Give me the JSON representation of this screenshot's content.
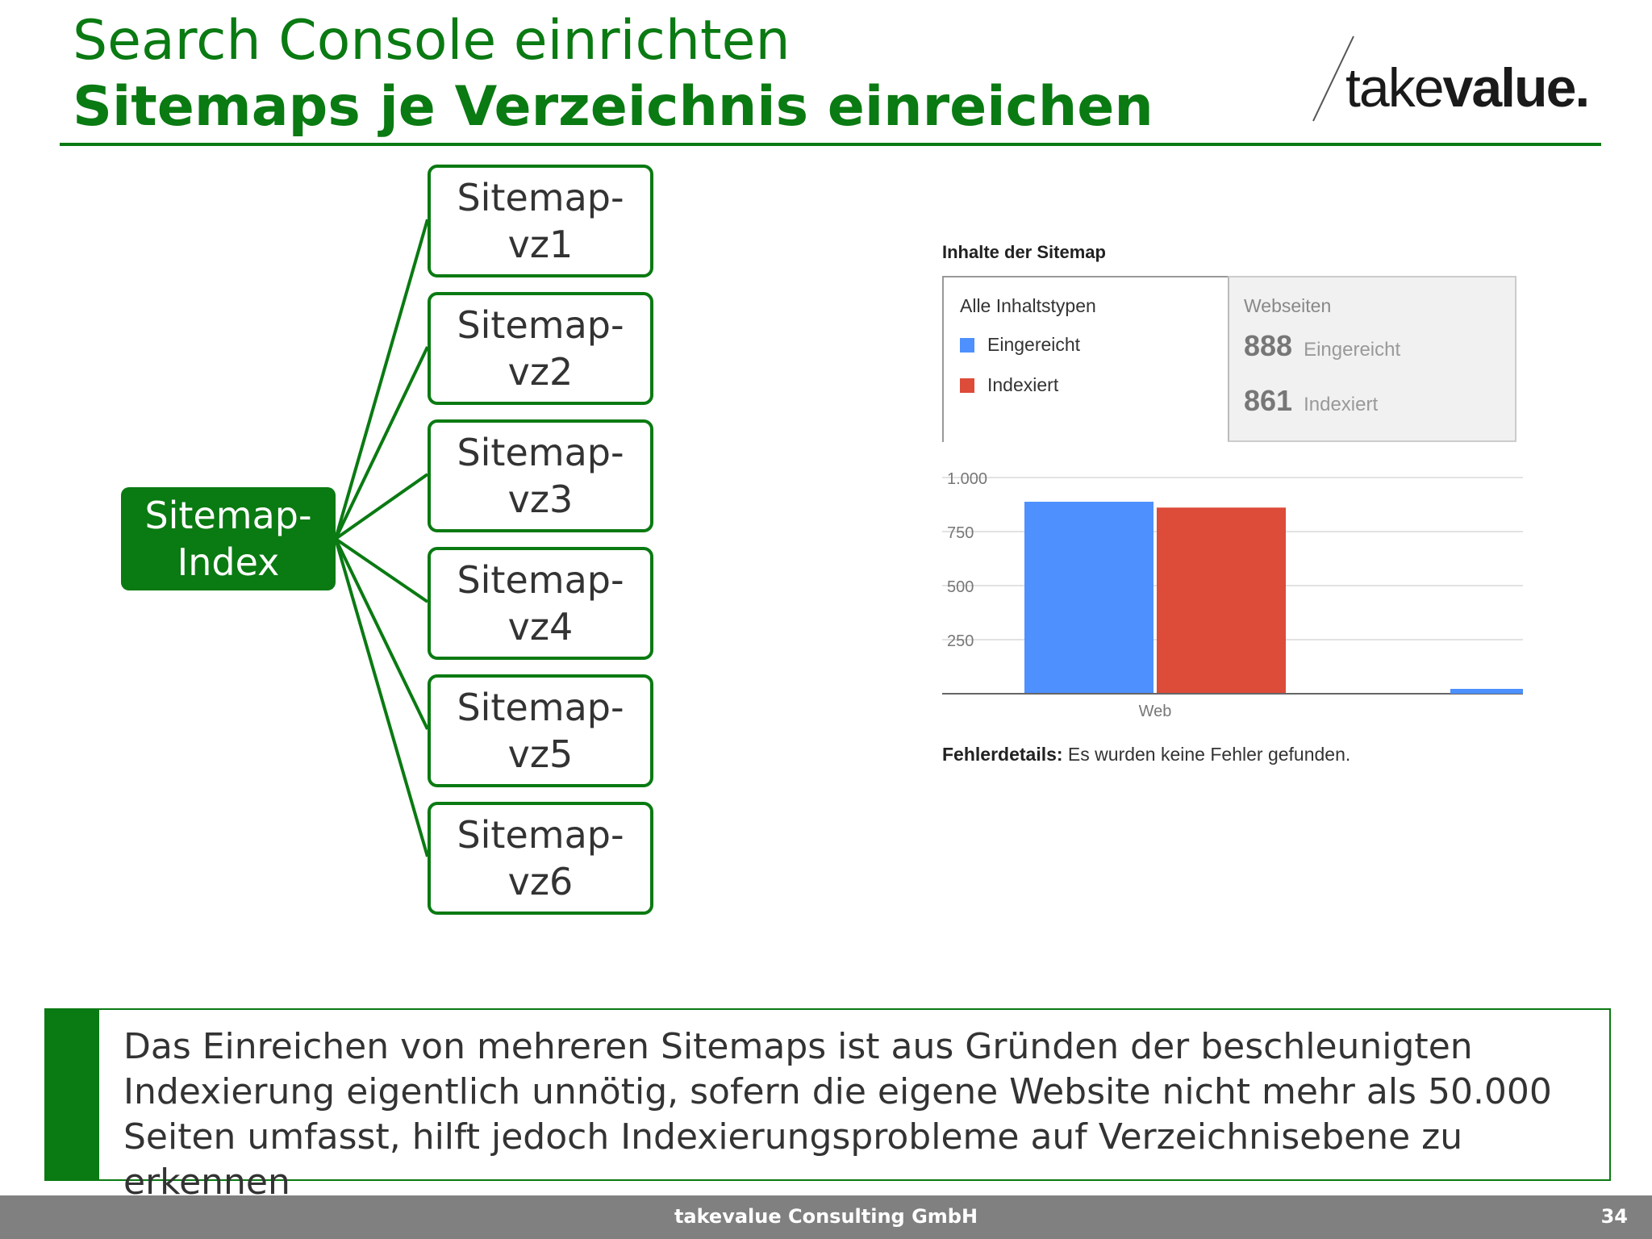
{
  "header": {
    "title": "Search Console einrichten",
    "subtitle": "Sitemaps je Verzeichnis einreichen",
    "accent_color": "#0a7a12"
  },
  "logo": {
    "part1": "take",
    "part2": "value."
  },
  "diagram": {
    "root": {
      "line1": "Sitemap-",
      "line2": "Index"
    },
    "children": [
      {
        "line1": "Sitemap-",
        "line2": "vz1"
      },
      {
        "line1": "Sitemap-",
        "line2": "vz2"
      },
      {
        "line1": "Sitemap-",
        "line2": "vz3"
      },
      {
        "line1": "Sitemap-",
        "line2": "vz4"
      },
      {
        "line1": "Sitemap-",
        "line2": "vz5"
      },
      {
        "line1": "Sitemap-",
        "line2": "vz6"
      }
    ]
  },
  "screenshot": {
    "title": "Inhalte der Sitemap",
    "legend": {
      "heading": "Alle Inhaltstypen",
      "items": [
        {
          "label": "Eingereicht",
          "color": "#4d90fe"
        },
        {
          "label": "Indexiert",
          "color": "#dd4b39"
        }
      ]
    },
    "stats": {
      "heading": "Webseiten",
      "rows": [
        {
          "value": "888",
          "label": "Eingereicht"
        },
        {
          "value": "861",
          "label": "Indexiert"
        }
      ]
    },
    "footer_bold": "Fehlerdetails:",
    "footer_text": " Es wurden keine Fehler gefunden."
  },
  "chart_data": {
    "type": "bar",
    "categories": [
      "Web"
    ],
    "series": [
      {
        "name": "Eingereicht",
        "values": [
          888
        ],
        "color": "#4d90fe"
      },
      {
        "name": "Indexiert",
        "values": [
          861
        ],
        "color": "#dd4b39"
      }
    ],
    "yticks": [
      "250",
      "500",
      "750",
      "1.000"
    ],
    "ytick_values": [
      250,
      500,
      750,
      1000
    ],
    "ylim": [
      0,
      1000
    ],
    "grid": true
  },
  "note": {
    "text": "Das Einreichen von mehreren Sitemaps ist aus Gründen der beschleunigten Indexierung eigentlich unnötig, sofern die eigene Website nicht mehr als 50.000 Seiten umfasst, hilft jedoch Indexierungsprobleme auf Verzeichnisebene zu erkennen"
  },
  "footer": {
    "company": "takevalue Consulting GmbH",
    "page": "34"
  }
}
